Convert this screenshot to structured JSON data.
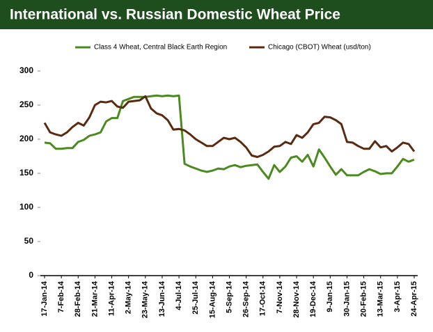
{
  "chart_data": {
    "type": "line",
    "title": "International vs. Russian Domestic Wheat Price",
    "categories": [
      "17-Jan-14",
      null,
      null,
      "7-Feb-14",
      null,
      null,
      "28-Feb-14",
      null,
      null,
      "21-Mar-14",
      null,
      null,
      "11-Apr-14",
      null,
      null,
      "2-May-14",
      null,
      null,
      "23-May-14",
      null,
      null,
      "13-Jun-14",
      null,
      null,
      "4-Jul-14",
      null,
      null,
      "25-Jul-14",
      null,
      null,
      "15-Aug-14",
      null,
      null,
      "5-Sep-14",
      null,
      null,
      "26-Sep-14",
      null,
      null,
      "17-Oct-14",
      null,
      null,
      "7-Nov-14",
      null,
      null,
      "28-Nov-14",
      null,
      null,
      "19-Dec-14",
      null,
      null,
      "9-Jan-15",
      null,
      null,
      "30-Jan-15",
      null,
      null,
      "20-Feb-15",
      null,
      null,
      "13-Mar-15",
      null,
      null,
      "3-Apr-15",
      null,
      null,
      "24-Apr-15"
    ],
    "series": [
      {
        "name": "Class 4 Wheat, Central Black Earth Region",
        "color": "#4a8a1e",
        "values": [
          195,
          194,
          186,
          186,
          187,
          187,
          196,
          199,
          205,
          207,
          210,
          226,
          231,
          231,
          256,
          259,
          262,
          262,
          262,
          263,
          264,
          263,
          264,
          263,
          264,
          164,
          160,
          157,
          154,
          152,
          154,
          157,
          156,
          160,
          162,
          159,
          161,
          162,
          163,
          152,
          142,
          162,
          152,
          160,
          173,
          175,
          167,
          177,
          160,
          185,
          173,
          160,
          148,
          156,
          147,
          147,
          147,
          152,
          156,
          153,
          149,
          150,
          150,
          160,
          171,
          167,
          170
        ]
      },
      {
        "name": "Chicago (CBOT) Wheat (usd/ton)",
        "color": "#5a2a10",
        "values": [
          224,
          210,
          207,
          205,
          210,
          218,
          224,
          220,
          232,
          250,
          255,
          254,
          256,
          248,
          246,
          255,
          256,
          257,
          263,
          245,
          238,
          235,
          228,
          214,
          215,
          213,
          207,
          200,
          195,
          190,
          190,
          196,
          202,
          200,
          202,
          196,
          188,
          176,
          174,
          177,
          182,
          189,
          190,
          196,
          193,
          206,
          202,
          210,
          222,
          224,
          233,
          232,
          228,
          222,
          196,
          195,
          190,
          186,
          186,
          197,
          188,
          190,
          182,
          188,
          195,
          193,
          182
        ]
      }
    ],
    "ylim": [
      0,
      300
    ],
    "yticks": [
      0,
      50,
      100,
      150,
      200,
      250,
      300
    ],
    "legend": "top"
  }
}
